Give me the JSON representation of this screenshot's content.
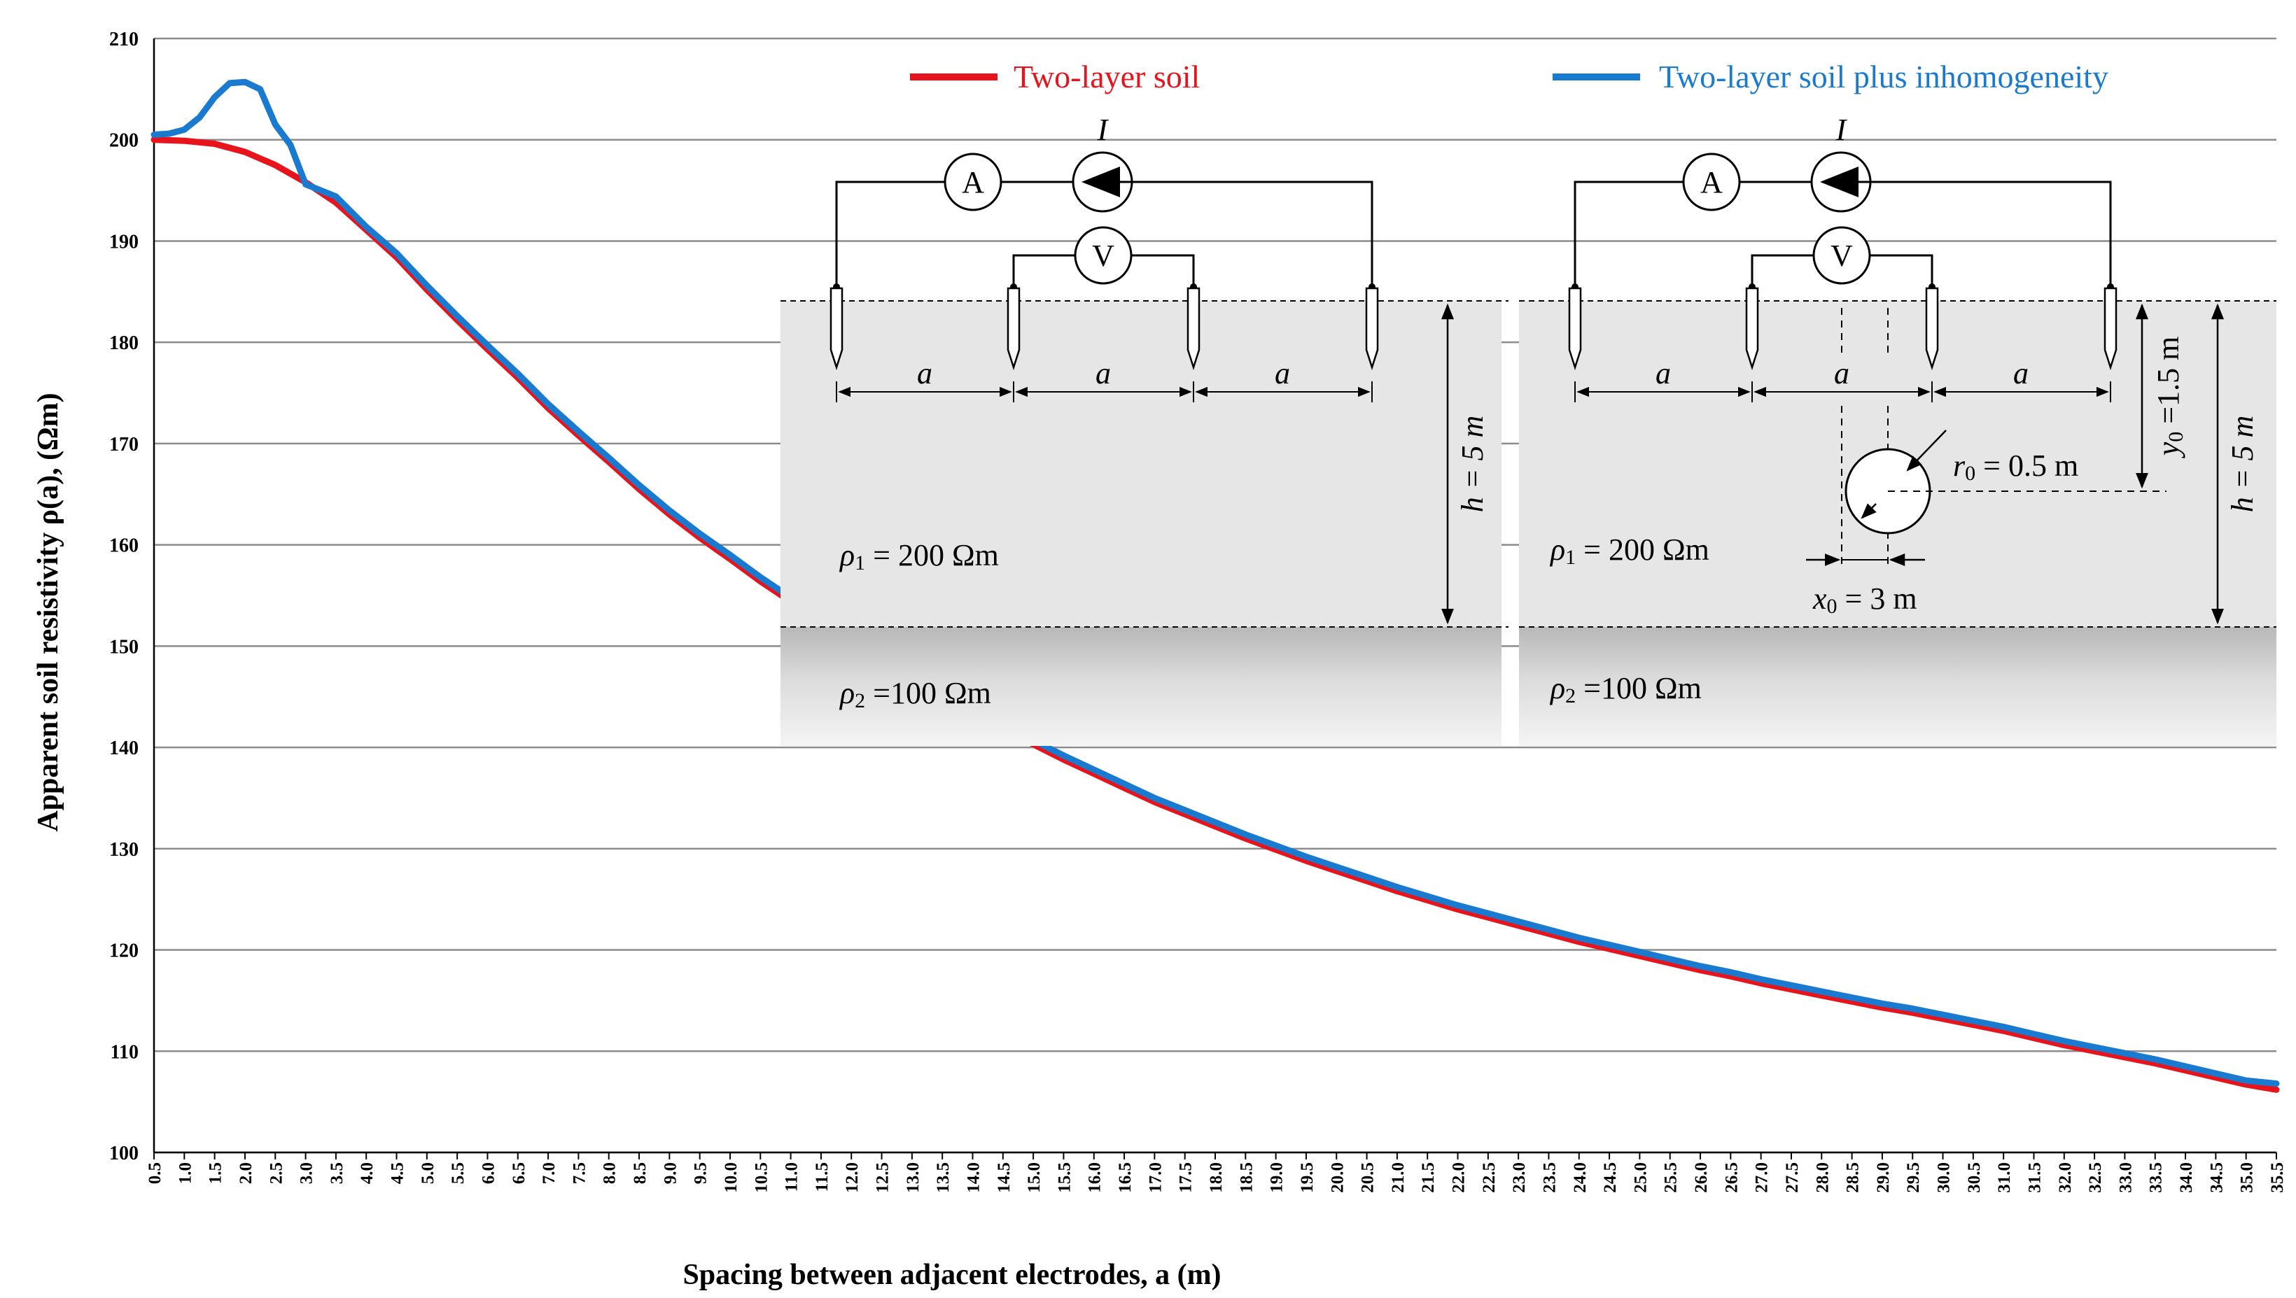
{
  "chart_data": {
    "type": "line",
    "xlabel": "Spacing between adjacent electrodes, a (m)",
    "ylabel": "Apparent soil resistivity ρ(a), (Ωm)",
    "xlim": [
      0.5,
      35.5
    ],
    "ylim": [
      100,
      210
    ],
    "yticks": [
      100,
      110,
      120,
      130,
      140,
      150,
      160,
      170,
      180,
      190,
      200,
      210
    ],
    "xticks": [
      "0.5",
      "1.0",
      "1.5",
      "2.0",
      "2.5",
      "3.0",
      "3.5",
      "4.0",
      "4.5",
      "5.0",
      "5.5",
      "6.0",
      "6.5",
      "7.0",
      "7.5",
      "8.0",
      "8.5",
      "9.0",
      "9.5",
      "10.0",
      "10.5",
      "11.0",
      "11.5",
      "12.0",
      "12.5",
      "13.0",
      "13.5",
      "14.0",
      "14.5",
      "15.0",
      "15.5",
      "16.0",
      "16.5",
      "17.0",
      "17.5",
      "18.0",
      "18.5",
      "19.0",
      "19.5",
      "20.0",
      "20.5",
      "21.0",
      "21.5",
      "22.0",
      "22.5",
      "23.0",
      "23.5",
      "24.0",
      "24.5",
      "25.0",
      "25.5",
      "26.0",
      "26.5",
      "27.0",
      "27.5",
      "28.0",
      "28.5",
      "29.0",
      "29.5",
      "30.0",
      "30.5",
      "31.0",
      "31.5",
      "32.0",
      "32.5",
      "33.0",
      "33.5",
      "34.0",
      "34.5",
      "35.0",
      "35.5"
    ],
    "grid": "horizontal",
    "legend_position": "top",
    "series": [
      {
        "name": "Two-layer soil",
        "color": "#e8141c",
        "points": [
          [
            0.5,
            200.0
          ],
          [
            1.0,
            199.9
          ],
          [
            1.5,
            199.6
          ],
          [
            2.0,
            198.8
          ],
          [
            2.5,
            197.5
          ],
          [
            3.0,
            195.8
          ],
          [
            3.5,
            193.8
          ],
          [
            4.0,
            191.1
          ],
          [
            4.5,
            188.4
          ],
          [
            5.0,
            185.2
          ],
          [
            5.5,
            182.2
          ],
          [
            6.0,
            179.3
          ],
          [
            6.5,
            176.5
          ],
          [
            7.0,
            173.5
          ],
          [
            7.5,
            170.8
          ],
          [
            8.0,
            168.2
          ],
          [
            8.5,
            165.5
          ],
          [
            9.0,
            163.0
          ],
          [
            9.5,
            160.7
          ],
          [
            10.0,
            158.6
          ],
          [
            10.5,
            156.4
          ],
          [
            11.0,
            154.4
          ],
          [
            11.5,
            152.4
          ],
          [
            12.0,
            150.4
          ],
          [
            12.5,
            148.6
          ],
          [
            13.0,
            146.9
          ],
          [
            13.5,
            145.2
          ],
          [
            14.0,
            143.5
          ],
          [
            14.5,
            141.9
          ],
          [
            15.0,
            140.3
          ],
          [
            15.5,
            138.8
          ],
          [
            16.0,
            137.4
          ],
          [
            16.5,
            136.0
          ],
          [
            17.0,
            134.6
          ],
          [
            17.5,
            133.4
          ],
          [
            18.0,
            132.2
          ],
          [
            18.5,
            131.0
          ],
          [
            19.0,
            129.9
          ],
          [
            19.5,
            128.8
          ],
          [
            20.0,
            127.8
          ],
          [
            20.5,
            126.8
          ],
          [
            21.0,
            125.8
          ],
          [
            21.5,
            124.9
          ],
          [
            22.0,
            124.0
          ],
          [
            22.5,
            123.2
          ],
          [
            23.0,
            122.4
          ],
          [
            23.5,
            121.6
          ],
          [
            24.0,
            120.8
          ],
          [
            24.5,
            120.1
          ],
          [
            25.0,
            119.4
          ],
          [
            25.5,
            118.7
          ],
          [
            26.0,
            118.0
          ],
          [
            26.5,
            117.4
          ],
          [
            27.0,
            116.7
          ],
          [
            27.5,
            116.1
          ],
          [
            28.0,
            115.5
          ],
          [
            28.5,
            114.9
          ],
          [
            29.0,
            114.3
          ],
          [
            29.5,
            113.8
          ],
          [
            30.0,
            113.2
          ],
          [
            30.5,
            112.6
          ],
          [
            31.0,
            112.0
          ],
          [
            31.5,
            111.3
          ],
          [
            32.0,
            110.6
          ],
          [
            32.5,
            110.0
          ],
          [
            33.0,
            109.4
          ],
          [
            33.5,
            108.8
          ],
          [
            34.0,
            108.1
          ],
          [
            34.5,
            107.4
          ],
          [
            35.0,
            106.7
          ],
          [
            35.5,
            106.2
          ]
        ]
      },
      {
        "name": "Two-layer soil plus inhomogeneity",
        "color": "#1a7ad0",
        "points": [
          [
            0.5,
            200.5
          ],
          [
            0.75,
            200.6
          ],
          [
            1.0,
            201.0
          ],
          [
            1.25,
            202.2
          ],
          [
            1.5,
            204.2
          ],
          [
            1.75,
            205.6
          ],
          [
            2.0,
            205.7
          ],
          [
            2.25,
            205.0
          ],
          [
            2.5,
            201.5
          ],
          [
            2.75,
            199.5
          ],
          [
            3.0,
            195.6
          ],
          [
            3.5,
            194.4
          ],
          [
            4.0,
            191.4
          ],
          [
            4.5,
            188.8
          ],
          [
            5.0,
            185.6
          ],
          [
            5.5,
            182.6
          ],
          [
            6.0,
            179.7
          ],
          [
            6.5,
            176.9
          ],
          [
            7.0,
            173.9
          ],
          [
            7.5,
            171.2
          ],
          [
            8.0,
            168.6
          ],
          [
            8.5,
            165.9
          ],
          [
            9.0,
            163.4
          ],
          [
            9.5,
            161.1
          ],
          [
            10.0,
            159.0
          ],
          [
            10.5,
            156.8
          ],
          [
            11.0,
            154.8
          ],
          [
            11.5,
            152.8
          ],
          [
            12.0,
            150.8
          ],
          [
            12.5,
            149.0
          ],
          [
            13.0,
            147.3
          ],
          [
            13.5,
            145.6
          ],
          [
            14.0,
            143.9
          ],
          [
            14.5,
            142.3
          ],
          [
            15.0,
            140.7
          ],
          [
            15.5,
            139.2
          ],
          [
            16.0,
            137.8
          ],
          [
            16.5,
            136.4
          ],
          [
            17.0,
            135.0
          ],
          [
            17.5,
            133.8
          ],
          [
            18.0,
            132.6
          ],
          [
            18.5,
            131.4
          ],
          [
            19.0,
            130.3
          ],
          [
            19.5,
            129.2
          ],
          [
            20.0,
            128.2
          ],
          [
            20.5,
            127.2
          ],
          [
            21.0,
            126.2
          ],
          [
            21.5,
            125.3
          ],
          [
            22.0,
            124.4
          ],
          [
            22.5,
            123.6
          ],
          [
            23.0,
            122.8
          ],
          [
            23.5,
            122.0
          ],
          [
            24.0,
            121.2
          ],
          [
            24.5,
            120.5
          ],
          [
            25.0,
            119.8
          ],
          [
            25.5,
            119.1
          ],
          [
            26.0,
            118.4
          ],
          [
            26.5,
            117.8
          ],
          [
            27.0,
            117.1
          ],
          [
            27.5,
            116.5
          ],
          [
            28.0,
            115.9
          ],
          [
            28.5,
            115.3
          ],
          [
            29.0,
            114.7
          ],
          [
            29.5,
            114.2
          ],
          [
            30.0,
            113.6
          ],
          [
            30.5,
            113.0
          ],
          [
            31.0,
            112.4
          ],
          [
            31.5,
            111.7
          ],
          [
            32.0,
            111.0
          ],
          [
            32.5,
            110.4
          ],
          [
            33.0,
            109.8
          ],
          [
            33.5,
            109.2
          ],
          [
            34.0,
            108.5
          ],
          [
            34.5,
            107.8
          ],
          [
            35.0,
            107.1
          ],
          [
            35.5,
            106.8
          ]
        ]
      }
    ]
  },
  "inset": {
    "current_label": "I",
    "ammeter": "A",
    "voltmeter": "V",
    "spacing": "a",
    "depth": "h = 5 m",
    "rho1": "ρ",
    "rho1_sub": "1",
    "rho1_val": " = 200 Ωm",
    "rho2": "ρ",
    "rho2_sub": "2",
    "rho2_val": " =100 Ωm",
    "r0": "r",
    "r0_sub": "0",
    "r0_val": " = 0.5 m",
    "x0": "x",
    "x0_sub": "0",
    "x0_val": " = 3 m",
    "y0": "y",
    "y0_sub": "0",
    "y0_val": " =1.5 m"
  },
  "colors": {
    "red": "#e8141c",
    "blue": "#1a7ad0",
    "grid": "#8c8c8c"
  }
}
